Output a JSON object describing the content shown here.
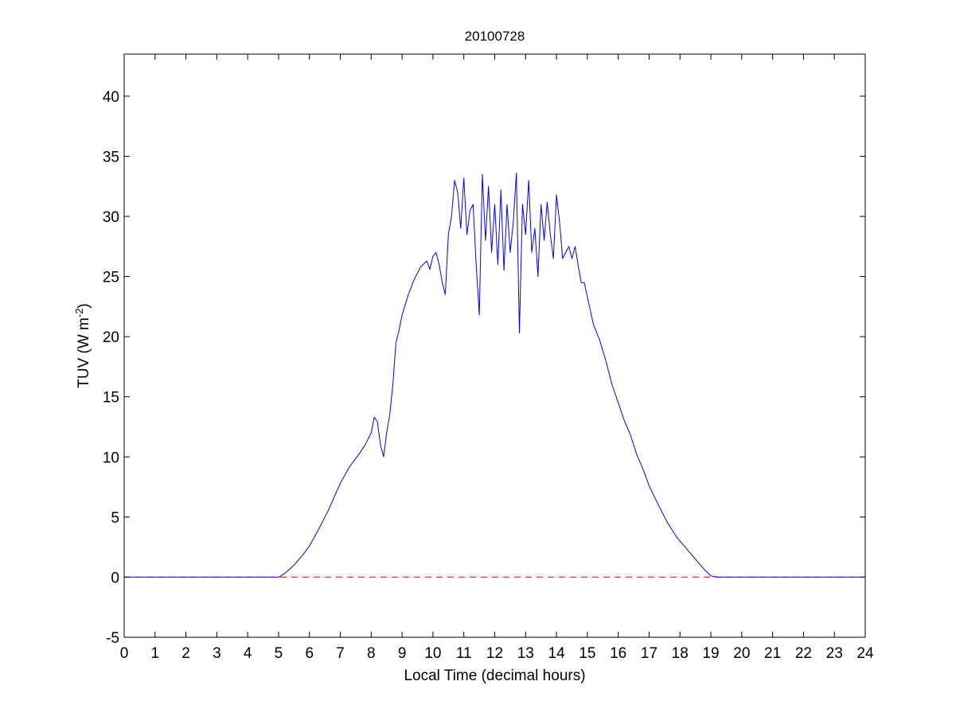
{
  "chart_data": {
    "type": "line",
    "title": "20100728",
    "xlabel": "Local Time (decimal hours)",
    "ylabel_main": "TUV (W m",
    "ylabel_sup": "-2",
    "ylabel_close": ")",
    "xlim": [
      0,
      24
    ],
    "ylim": [
      -5,
      43.5
    ],
    "xticks": [
      0,
      1,
      2,
      3,
      4,
      5,
      6,
      7,
      8,
      9,
      10,
      11,
      12,
      13,
      14,
      15,
      16,
      17,
      18,
      19,
      20,
      21,
      22,
      23,
      24
    ],
    "yticks": [
      -5,
      0,
      5,
      10,
      15,
      20,
      25,
      30,
      35,
      40
    ],
    "grid": false,
    "legend": "none",
    "reference_line": {
      "y": 0,
      "color": "#ff0000",
      "style": "dashed"
    },
    "series": [
      {
        "color": "#0000ff",
        "x": [
          0,
          5,
          5.2,
          5.5,
          5.8,
          6,
          6.3,
          6.6,
          7,
          7.3,
          7.6,
          7.8,
          8,
          8.1,
          8.2,
          8.3,
          8.4,
          8.5,
          8.6,
          8.7,
          8.8,
          8.9,
          9,
          9.2,
          9.4,
          9.6,
          9.8,
          9.9,
          10,
          10.1,
          10.2,
          10.3,
          10.4,
          10.5,
          10.6,
          10.7,
          10.8,
          10.9,
          11,
          11.1,
          11.2,
          11.3,
          11.4,
          11.5,
          11.6,
          11.7,
          11.8,
          11.9,
          12,
          12.1,
          12.2,
          12.3,
          12.4,
          12.5,
          12.6,
          12.7,
          12.8,
          12.9,
          13,
          13.1,
          13.2,
          13.3,
          13.4,
          13.5,
          13.6,
          13.7,
          13.8,
          13.9,
          14,
          14.1,
          14.2,
          14.3,
          14.4,
          14.5,
          14.6,
          14.7,
          14.8,
          14.9,
          15,
          15.2,
          15.4,
          15.6,
          15.8,
          16,
          16.2,
          16.4,
          16.6,
          16.8,
          17,
          17.3,
          17.6,
          17.9,
          18.2,
          18.5,
          18.8,
          19,
          19.2,
          19.4,
          19.6,
          19.7,
          24
        ],
        "y": [
          0,
          0,
          0.3,
          1,
          1.9,
          2.6,
          4,
          5.5,
          7.8,
          9.2,
          10.2,
          11,
          12,
          13.3,
          12.9,
          11,
          10,
          12,
          13.5,
          16,
          19.5,
          20.5,
          21.8,
          23.5,
          24.8,
          25.8,
          26.3,
          25.6,
          26.7,
          27,
          26,
          24.5,
          23.5,
          28.5,
          30,
          33,
          32,
          29,
          33.2,
          28.5,
          30.5,
          31,
          26,
          21.8,
          33.5,
          28,
          32.5,
          27,
          31,
          26,
          32.2,
          25.5,
          31,
          27,
          29.5,
          33.6,
          20.3,
          31,
          28.5,
          33,
          27,
          29,
          25,
          31,
          28,
          31.2,
          28.5,
          26.5,
          31.8,
          29.5,
          26.5,
          27,
          27.5,
          26.5,
          27.5,
          26,
          24.5,
          24.5,
          23.3,
          21,
          19.7,
          18,
          16,
          14.5,
          13,
          11.8,
          10.2,
          9,
          7.6,
          6,
          4.5,
          3.3,
          2.4,
          1.5,
          0.6,
          0.1,
          0,
          0,
          0,
          0,
          0
        ]
      }
    ]
  }
}
